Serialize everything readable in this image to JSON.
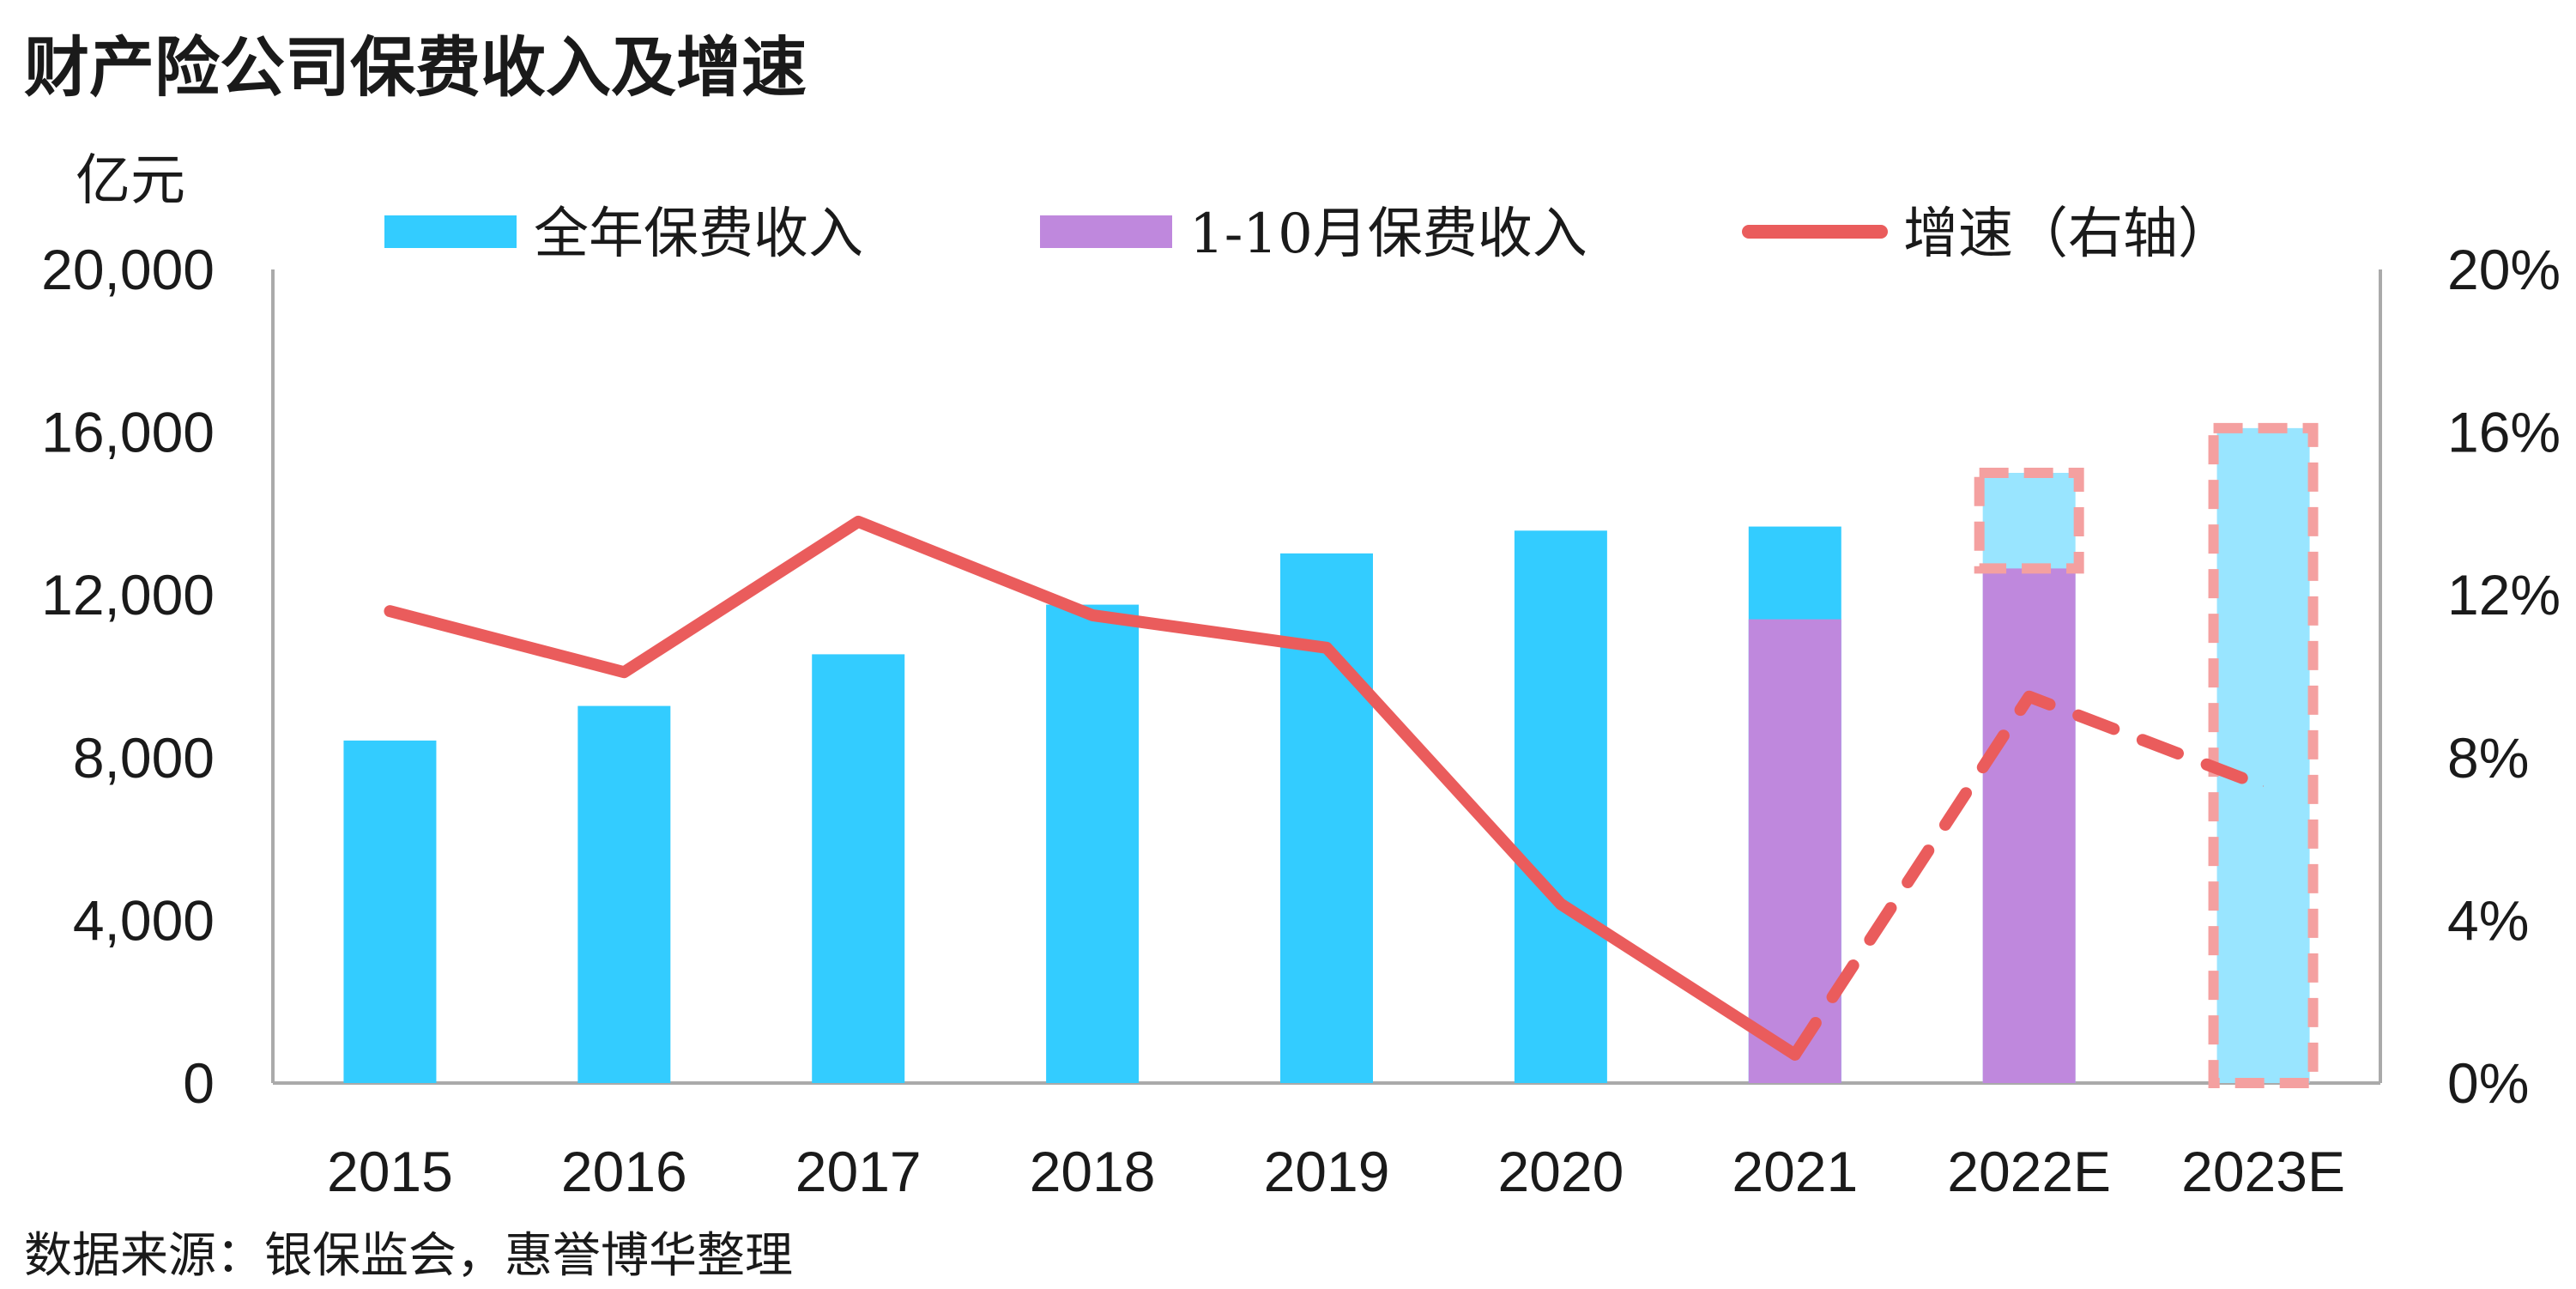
{
  "title": "财产险公司保费收入及增速",
  "source": "数据来源：银保监会，惠誉博华整理",
  "colors": {
    "full_year": "#33ccff",
    "full_year_est": "#99e5ff",
    "ten_month": "#bf88dd",
    "growth": "#ea5c5c",
    "est_border": "#f4a0a0",
    "axis": "#aaaaaa"
  },
  "chart_data": {
    "type": "bar",
    "title": "财产险公司保费收入及增速",
    "ylabel": "亿元",
    "ylim": [
      0,
      20000
    ],
    "y2lim": [
      0,
      20
    ],
    "yticks": [
      "0",
      "4,000",
      "8,000",
      "12,000",
      "16,000",
      "20,000"
    ],
    "y2ticks": [
      "0%",
      "4%",
      "8%",
      "12%",
      "16%",
      "20%"
    ],
    "categories": [
      "2015",
      "2016",
      "2017",
      "2018",
      "2019",
      "2020",
      "2021",
      "2022E",
      "2023E"
    ],
    "legend": [
      "全年保费收入",
      "1-10月保费收入",
      "增速（右轴）"
    ],
    "legend_position": "top",
    "grid": false,
    "series": [
      {
        "name": "全年保费收入",
        "type": "bar",
        "axis": "left",
        "values": [
          8420,
          9270,
          10540,
          11760,
          13020,
          13580,
          13680,
          15000,
          16100
        ],
        "estimate_from_index": 7
      },
      {
        "name": "1-10月保费收入",
        "type": "bar",
        "axis": "left",
        "values": [
          null,
          null,
          null,
          null,
          null,
          null,
          11400,
          12650,
          null
        ]
      },
      {
        "name": "增速（右轴）",
        "type": "line",
        "axis": "right",
        "values": [
          11.6,
          10.1,
          13.8,
          11.5,
          10.7,
          4.4,
          0.7,
          9.5,
          7.3
        ],
        "dashed_from_index": 6
      }
    ]
  }
}
